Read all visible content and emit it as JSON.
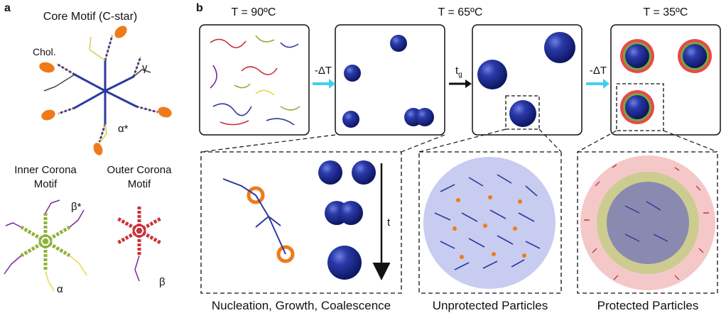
{
  "panel_a": {
    "letter": "a",
    "core_title": "Core Motif (C-star)",
    "chol_label": "Chol.",
    "gamma_label": "γ",
    "alpha_star_label": "α*",
    "inner_title_1": "Inner Corona",
    "inner_title_2": "Motif",
    "outer_title_1": "Outer Corona",
    "outer_title_2": "Motif",
    "beta_star_label": "β*",
    "alpha_label": "α",
    "beta_label": "β"
  },
  "panel_b": {
    "letter": "b",
    "t90": "T = 90ºC",
    "t65": "T = 65ºC",
    "t35": "T = 35ºC",
    "cool_label_1": "-ΔT",
    "tg_label_base": "t",
    "tg_label_sub": "g",
    "cool_label_2": "-ΔT",
    "time_label": "t",
    "caption_1": "Nucleation, Growth, Coalescence",
    "caption_2": "Unprotected Particles",
    "caption_3": "Protected Particles"
  },
  "colors": {
    "core_blue": "#2b3a9e",
    "particle_blue": "#1a2a8f",
    "cholesterol_orange": "#f07a1a",
    "inner_green": "#8fb23a",
    "outer_red": "#c8353a",
    "arrow_cyan": "#3fd0f0",
    "alpha_yellow": "#e6d84a",
    "beta_purple": "#7a2a9a"
  }
}
